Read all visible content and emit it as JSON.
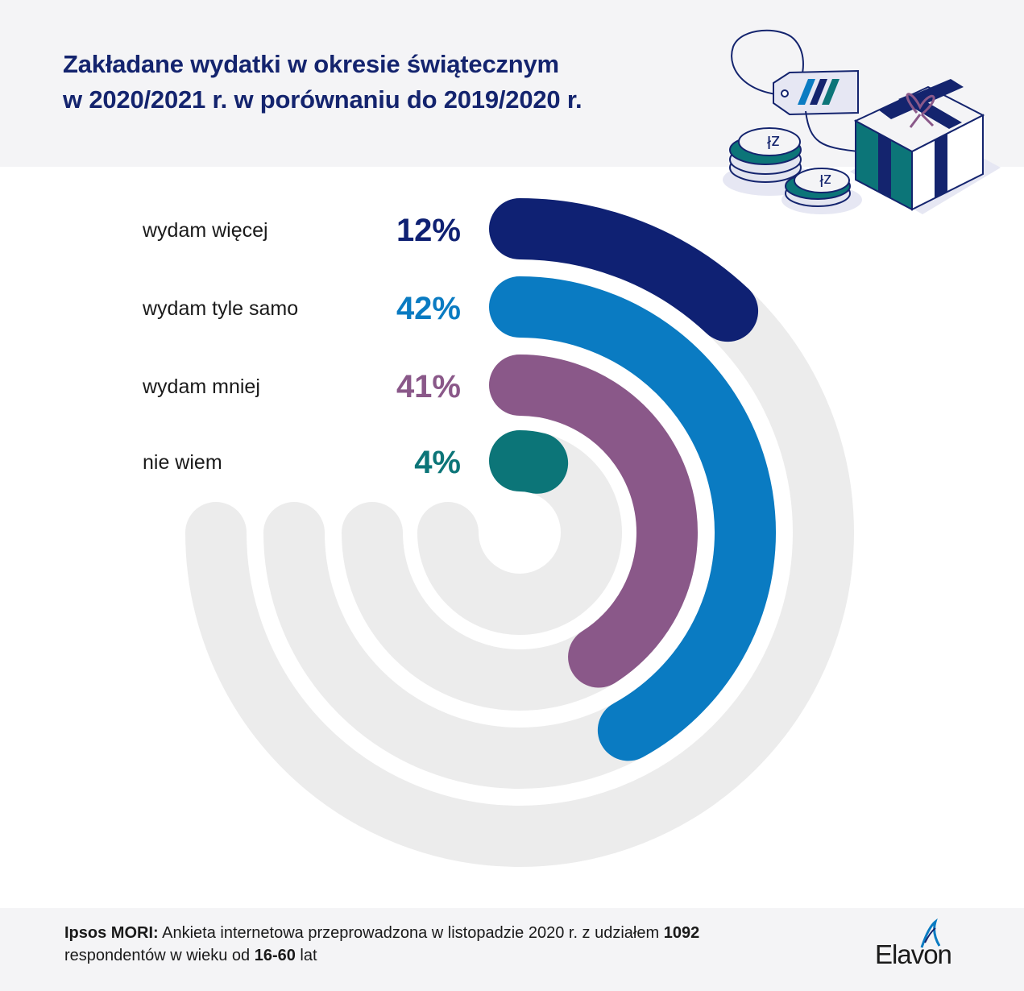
{
  "header": {
    "title_line1": "Zakładane wydatki w okresie świątecznym",
    "title_line2": "w 2020/2021 r. w porównaniu do 2019/2020 r."
  },
  "chart_data": {
    "type": "radial-bar",
    "max": 100,
    "track_color": "#ececec",
    "categories": [
      "wydam więcej",
      "wydam tyle samo",
      "wydam mniej",
      "nie wiem"
    ],
    "values": [
      12,
      42,
      41,
      4
    ],
    "labels": [
      "12%",
      "42%",
      "41%",
      "4%"
    ],
    "colors": [
      "#0f2173",
      "#0a7bc2",
      "#8a5889",
      "#0c7578"
    ]
  },
  "footer": {
    "source_bold": "Ipsos MORI:",
    "source_text_1": "Ankieta internetowa przeprowadzona w listopadzie 2020 r. z udziałem",
    "respondents": "1092",
    "source_text_2": "respondentów w wieku od",
    "age_range": "16-60",
    "source_text_3": "lat",
    "logo_text": "Elavon"
  },
  "icons": [
    "price-tag-icon",
    "coin-stack-icon",
    "gift-box-icon"
  ]
}
